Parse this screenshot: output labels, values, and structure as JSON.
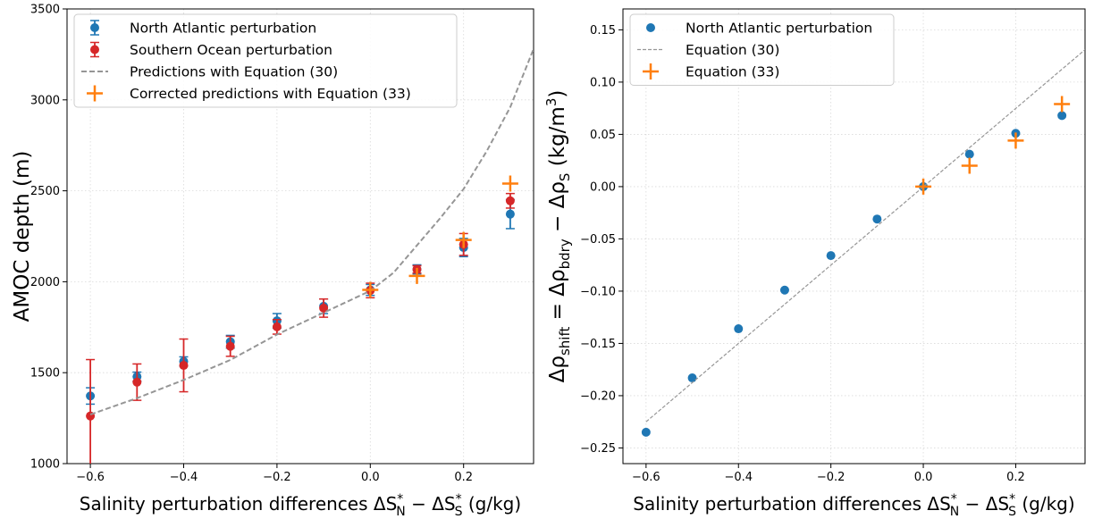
{
  "chart_data": [
    {
      "type": "scatter",
      "ylabel": "AMOC depth (m)",
      "xlabel_parts": {
        "prefix": "Salinity perturbation differences ΔS",
        "sub1": "N",
        "sup1": "*",
        "mid": " − ΔS",
        "sub2": "S",
        "sup2": "*",
        "suffix": " (g/kg)"
      },
      "xlim": [
        -0.65,
        0.35
      ],
      "ylim": [
        1000,
        3500
      ],
      "xticks": [
        -0.6,
        -0.4,
        -0.2,
        0.0,
        0.2
      ],
      "xtick_labels": [
        "−0.6",
        "−0.4",
        "−0.2",
        "0.0",
        "0.2"
      ],
      "yticks": [
        1000,
        1500,
        2000,
        2500,
        3000,
        3500
      ],
      "ytick_labels": [
        "1000",
        "1500",
        "2000",
        "2500",
        "3000",
        "3500"
      ],
      "grid": true,
      "legend_position": "top-left",
      "series": [
        {
          "name": "North Atlantic perturbation",
          "kind": "errorbar",
          "color": "#1f77b4",
          "x": [
            -0.6,
            -0.5,
            -0.4,
            -0.3,
            -0.2,
            -0.1,
            0.0,
            0.1,
            0.2,
            0.3
          ],
          "y": [
            1372,
            1478,
            1562,
            1670,
            1785,
            1865,
            1955,
            2068,
            2188,
            2372
          ],
          "err": [
            45,
            25,
            25,
            35,
            40,
            40,
            30,
            25,
            50,
            80
          ]
        },
        {
          "name": "Southern Ocean perturbation",
          "kind": "errorbar",
          "color": "#d62728",
          "x": [
            -0.6,
            -0.5,
            -0.4,
            -0.3,
            -0.2,
            -0.1,
            0.0,
            0.1,
            0.2,
            0.3
          ],
          "y": [
            1262,
            1448,
            1540,
            1645,
            1752,
            1855,
            1952,
            2068,
            2205,
            2445
          ],
          "err": [
            310,
            100,
            145,
            55,
            40,
            50,
            40,
            20,
            60,
            40
          ]
        },
        {
          "name": "Predictions with Equation (30)",
          "kind": "dashed-line",
          "color": "#969696",
          "x": [
            -0.6,
            -0.5,
            -0.4,
            -0.3,
            -0.2,
            -0.1,
            0.0,
            0.05,
            0.1,
            0.15,
            0.2,
            0.25,
            0.3,
            0.35
          ],
          "y": [
            1270,
            1360,
            1460,
            1570,
            1710,
            1830,
            1950,
            2050,
            2200,
            2350,
            2510,
            2720,
            2960,
            3280
          ]
        },
        {
          "name": "Corrected predictions with Equation (33)",
          "kind": "plus",
          "color": "#ff7f0e",
          "x": [
            0.0,
            0.1,
            0.2,
            0.3
          ],
          "y": [
            1955,
            2032,
            2230,
            2540
          ]
        }
      ]
    },
    {
      "type": "scatter",
      "ylabel_parts": {
        "a": "Δρ",
        "sub_a": "shift",
        "b": " = Δρ",
        "sub_b": "bdry",
        "c": " − Δρ",
        "sub_c": "S",
        "d": " (kg/m",
        "sup_d": "3",
        "e": ")"
      },
      "xlabel_parts": {
        "prefix": "Salinity perturbation differences ΔS",
        "sub1": "N",
        "sup1": "*",
        "mid": " − ΔS",
        "sub2": "S",
        "sup2": "*",
        "suffix": " (g/kg)"
      },
      "xlim": [
        -0.65,
        0.35
      ],
      "ylim": [
        -0.265,
        0.17
      ],
      "xticks": [
        -0.6,
        -0.4,
        -0.2,
        0.0,
        0.2
      ],
      "xtick_labels": [
        "−0.6",
        "−0.4",
        "−0.2",
        "0.0",
        "0.2"
      ],
      "yticks": [
        -0.25,
        -0.2,
        -0.15,
        -0.1,
        -0.05,
        0.0,
        0.05,
        0.1,
        0.15
      ],
      "ytick_labels": [
        "−0.25",
        "−0.20",
        "−0.15",
        "−0.10",
        "−0.05",
        "0.00",
        "0.05",
        "0.10",
        "0.15"
      ],
      "grid": true,
      "legend_position": "top-left",
      "series": [
        {
          "name": "North Atlantic perturbation",
          "kind": "dots",
          "color": "#1f77b4",
          "x": [
            -0.6,
            -0.5,
            -0.4,
            -0.3,
            -0.2,
            -0.1,
            0.0,
            0.1,
            0.2,
            0.3
          ],
          "y": [
            -0.235,
            -0.183,
            -0.136,
            -0.099,
            -0.066,
            -0.031,
            0.0,
            0.031,
            0.051,
            0.068
          ]
        },
        {
          "name": "Equation (30)",
          "kind": "dashed-line",
          "color": "#969696",
          "x": [
            -0.6,
            0.35
          ],
          "y": [
            -0.225,
            0.131
          ]
        },
        {
          "name": "Equation (33)",
          "kind": "plus",
          "color": "#ff7f0e",
          "x": [
            0.0,
            0.1,
            0.2,
            0.3
          ],
          "y": [
            0.0,
            0.02,
            0.044,
            0.079
          ]
        }
      ]
    }
  ]
}
